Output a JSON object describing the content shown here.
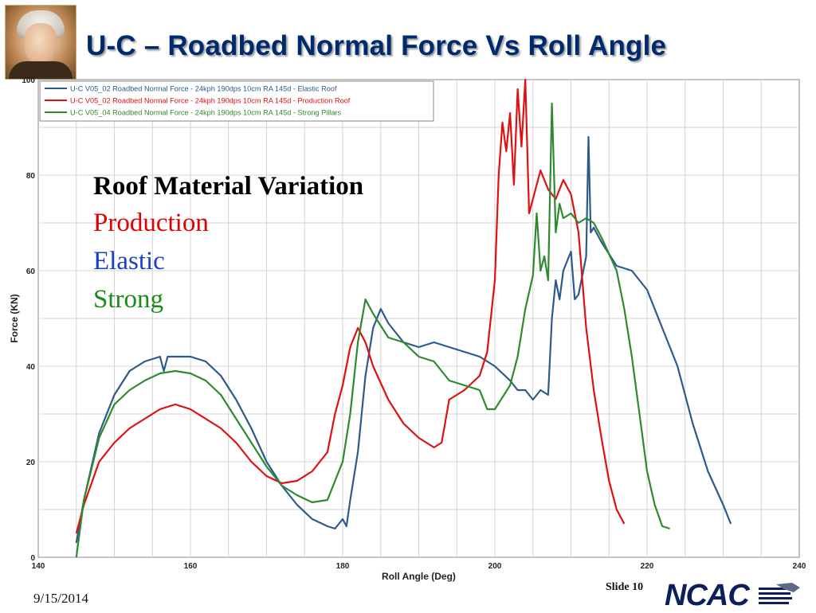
{
  "slide": {
    "title": "U-C – Roadbed Normal Force Vs Roll Angle",
    "date": "9/15/2014",
    "slide_number": "Slide 10",
    "logo_text": "NCAC"
  },
  "annotation": {
    "heading": "Roof Material Variation",
    "items": [
      {
        "text": "Production",
        "color": "#e00000"
      },
      {
        "text": "Elastic",
        "color": "#1a3fc9"
      },
      {
        "text": "Strong",
        "color": "#1a8a1a"
      }
    ]
  },
  "chart_data": {
    "type": "line",
    "xlabel": "Roll Angle (Deg)",
    "ylabel": "Force (KN)",
    "xlim": [
      140,
      240
    ],
    "ylim": [
      0,
      100
    ],
    "xticks": [
      140,
      160,
      180,
      200,
      220,
      240
    ],
    "yticks": [
      0,
      20,
      40,
      60,
      80,
      100
    ],
    "grid": true,
    "legend_position": "top-left",
    "series": [
      {
        "name": "U-C V05_02  Roadbed Normal Force - 24kph 190dps 10cm RA 145d - Elastic Roof",
        "color": "#2e5a8a",
        "x": [
          145,
          146,
          148,
          150,
          152,
          154,
          156,
          156.5,
          157,
          158,
          160,
          162,
          164,
          166,
          168,
          170,
          172,
          174,
          176,
          178,
          179,
          180,
          180.5,
          181,
          182,
          183,
          184,
          185,
          186,
          187,
          188,
          190,
          192,
          194,
          196,
          198,
          200,
          202,
          203,
          204,
          205,
          206,
          207,
          207.5,
          208,
          208.5,
          209,
          210,
          210.5,
          211,
          212,
          212.3,
          212.6,
          213,
          214,
          216,
          218,
          220,
          222,
          224,
          226,
          228,
          230,
          231
        ],
        "y": [
          3,
          12,
          26,
          34,
          39,
          41,
          42,
          39,
          42,
          42,
          42,
          41,
          38,
          33,
          27,
          20,
          15,
          11,
          8,
          6.5,
          6,
          8,
          6.5,
          12,
          22,
          38,
          48,
          52,
          49,
          47,
          45,
          44,
          45,
          44,
          43,
          42,
          40,
          37,
          35,
          35,
          33,
          35,
          34,
          50,
          58,
          54,
          60,
          64,
          54,
          55,
          63,
          88,
          68,
          69,
          66,
          61,
          60,
          56,
          48,
          40,
          28,
          18,
          11,
          7
        ]
      },
      {
        "name": "U-C V05_02  Roadbed Normal Force - 24kph 190dps 10cm RA 145d - Production Roof",
        "color": "#e01010",
        "x": [
          145,
          146,
          148,
          150,
          152,
          154,
          156,
          158,
          160,
          162,
          164,
          166,
          168,
          170,
          172,
          174,
          176,
          178,
          179,
          180,
          181,
          182,
          183,
          184,
          186,
          188,
          190,
          192,
          193,
          194,
          196,
          198,
          199,
          200,
          200.5,
          201,
          201.5,
          202,
          202.5,
          203,
          203.5,
          204,
          204.5,
          205,
          206,
          207,
          208,
          209,
          210,
          211,
          212,
          213,
          214,
          215,
          216,
          217
        ],
        "y": [
          5,
          11,
          20,
          24,
          27,
          29,
          31,
          32,
          31,
          29,
          27,
          24,
          20,
          17,
          15.5,
          16,
          18,
          22,
          30,
          36,
          44,
          48,
          45,
          40,
          33,
          28,
          25,
          23,
          24,
          33,
          35,
          38,
          43,
          58,
          80,
          91,
          85,
          93,
          78,
          98,
          86,
          100,
          72,
          75,
          81,
          77,
          75,
          79,
          76,
          68,
          48,
          35,
          25,
          16,
          10,
          7
        ]
      },
      {
        "name": "U-C V05_04  Roadbed Normal Force - 24kph 190dps 10cm RA 145d - Strong Pillars",
        "color": "#2e8a2e",
        "x": [
          145,
          146,
          148,
          150,
          152,
          154,
          156,
          158,
          160,
          162,
          164,
          166,
          168,
          170,
          172,
          174,
          176,
          178,
          180,
          181,
          182,
          183,
          184,
          186,
          188,
          190,
          192,
          194,
          196,
          198,
          199,
          200,
          202,
          203,
          204,
          205,
          205.5,
          206,
          206.5,
          207,
          207.5,
          208,
          208.5,
          209,
          210,
          211,
          212,
          213,
          214,
          216,
          217,
          218,
          219,
          220,
          221,
          222,
          223
        ],
        "y": [
          0,
          12,
          25,
          32,
          35,
          37,
          38.5,
          39,
          38.5,
          37,
          34,
          29,
          24,
          19,
          15,
          13,
          11.5,
          12,
          20,
          30,
          45,
          54,
          51,
          46,
          45,
          42,
          41,
          37,
          36,
          35,
          31,
          31,
          36,
          42,
          52,
          59,
          72,
          60,
          63,
          58,
          95,
          68,
          74,
          71,
          72,
          70,
          71,
          70,
          67,
          60,
          52,
          42,
          30,
          18,
          11,
          6.5,
          6
        ]
      }
    ]
  }
}
